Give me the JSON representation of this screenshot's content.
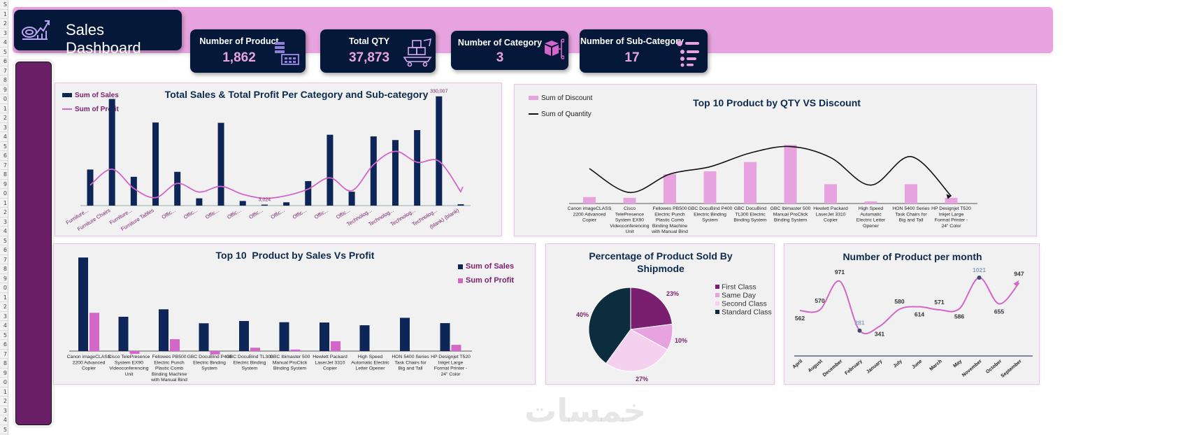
{
  "header": {
    "title": "Sales Dashboard"
  },
  "kpis": [
    {
      "label": "Number of Product",
      "value": "1,862",
      "icon": "grid-table-icon"
    },
    {
      "label": "Total QTY",
      "value": "37,873",
      "icon": "boxes-cart-icon"
    },
    {
      "label": "Number of Category",
      "value": "3",
      "icon": "cube-network-icon"
    },
    {
      "label": "Number of Sub-Category",
      "value": "17",
      "icon": "list-hierarchy-icon"
    }
  ],
  "colors": {
    "navy": "#0d2657",
    "pink": "#e7a3df",
    "magenta": "#d366c8",
    "purple": "#7a1f6f",
    "dark_teal": "#0c2d3e"
  },
  "chart_data": [
    {
      "id": "category-chart",
      "type": "bar",
      "title": "Total Sales & Total Profit Per Category and Sub-category",
      "legend": [
        "Sum of Sales",
        "Sum of Profit"
      ],
      "categories": [
        "Furniture...",
        "Furniture Chairs",
        "Furniture...",
        "Furniture Tables",
        "Offic...",
        "Offic...",
        "Offic...",
        "Offic...",
        "Offic...",
        "Offic...",
        "Offic...",
        "Offic...",
        "Offic...",
        "Technolog...",
        "Technolog...",
        "Technolog...",
        "Technolog...",
        "(blank) (blank)"
      ],
      "series": [
        {
          "name": "Sum of Sales",
          "values": [
            109000,
            322000,
            87000,
            251000,
            102000,
            22000,
            250000,
            14000,
            3024,
            10000,
            74000,
            214000,
            42000,
            209000,
            198000,
            228000,
            330007,
            4000
          ]
        },
        {
          "name": "Sum of Profit",
          "values": [
            62000,
            110000,
            52000,
            24000,
            67000,
            41000,
            58000,
            34000,
            22000,
            30000,
            50000,
            84000,
            45000,
            124000,
            164000,
            131000,
            134000,
            42000
          ]
        }
      ],
      "data_labels": [
        {
          "index": 8,
          "text": "3,024"
        },
        {
          "index": 16,
          "text": "330,007"
        }
      ],
      "ylim": [
        0,
        340000
      ]
    },
    {
      "id": "qty-discount-chart",
      "type": "bar",
      "title": "Top 10 Product by QTY VS Discount",
      "legend": [
        "Sum of Discount",
        "Sum of Quantity"
      ],
      "categories": [
        "Canon imageCLASS 2200 Advanced Copier",
        "Cisco TelePresence System EX90 Videoconferencing Unit",
        "Fellowes PB500 Electric Punch Plastic Comb Binding Machine with Manual Bind",
        "GBC DocuBind P400 Electric Binding System",
        "GBC DocuBind TL300 Electric Binding System",
        "GBC Ibimaster 500 Manual ProClick Binding System",
        "Hewlett Packard LaserJet 3310 Copier",
        "High Speed Automatic Electric Letter Opener",
        "HON 5400 Series Task Chairs for Big and Tall",
        "HP Designjet T520 Inkjet Large Format Printer - 24\" Color"
      ],
      "series": [
        {
          "name": "Sum of Discount",
          "values": [
            0.9,
            0.8,
            4.1,
            4.5,
            5.8,
            8.2,
            2.7,
            0.3,
            2.7,
            0.8
          ]
        },
        {
          "name": "Sum of Quantity",
          "values": [
            38,
            12,
            32,
            40,
            55,
            62,
            50,
            20,
            51,
            8
          ]
        }
      ]
    },
    {
      "id": "sales-profit-chart",
      "type": "bar",
      "title": "Top 10  Product by Sales Vs Profit",
      "legend": [
        "Sum of Sales",
        "Sum of Profit"
      ],
      "categories": [
        "Canon imageCLASS 2200 Advanced Copier",
        "Cisco TelePresence System EX90 Videoconferencing Unit",
        "Fellowes PB500 Electric Punch Plastic Comb Binding Machine with Manual Bind",
        "GBC DocuBind P400 Electric Binding System",
        "GBC DocuBind TL300 Electric Binding System",
        "GBC Ibimaster 500 Manual ProClick Binding System",
        "Hewlett Packard LaserJet 3310 Copier",
        "High Speed Automatic Electric Letter Opener",
        "HON 5400 Series Task Chairs for Big and Tall",
        "HP Designjet T520 Inkjet Large Format Printer - 24\" Color"
      ],
      "series": [
        {
          "name": "Sum of Sales",
          "values": [
            61600,
            22600,
            27500,
            18300,
            19800,
            19000,
            18800,
            17000,
            21900,
            18400
          ]
        },
        {
          "name": "Sum of Profit",
          "values": [
            25200,
            -1800,
            7800,
            -2200,
            2200,
            1000,
            6500,
            0,
            0,
            4100
          ]
        }
      ]
    },
    {
      "id": "shipmode-pie",
      "type": "pie",
      "title": "Percentage of Product Sold By Shipmode",
      "labels": [
        "First Class",
        "Same Day",
        "Second Class",
        "Standard Class"
      ],
      "values": [
        23,
        10,
        27,
        40
      ],
      "value_labels": [
        "23%",
        "10%",
        "27%",
        "40%"
      ],
      "colors": [
        "#7a1f6f",
        "#e7a3df",
        "#f4d2ef",
        "#0c2d3e"
      ]
    },
    {
      "id": "monthly-line",
      "type": "line",
      "title": "Number of Product per month",
      "categories": [
        "April",
        "August",
        "December",
        "February",
        "January",
        "July",
        "June",
        "March",
        "May",
        "November",
        "October",
        "September"
      ],
      "values": [
        562,
        570,
        971,
        281,
        341,
        580,
        614,
        571,
        586,
        1021,
        655,
        947
      ],
      "value_labels": [
        "562",
        "570",
        "971",
        "281",
        "341",
        "580",
        "614",
        "571",
        "586",
        "1021",
        "655",
        "947"
      ]
    }
  ]
}
